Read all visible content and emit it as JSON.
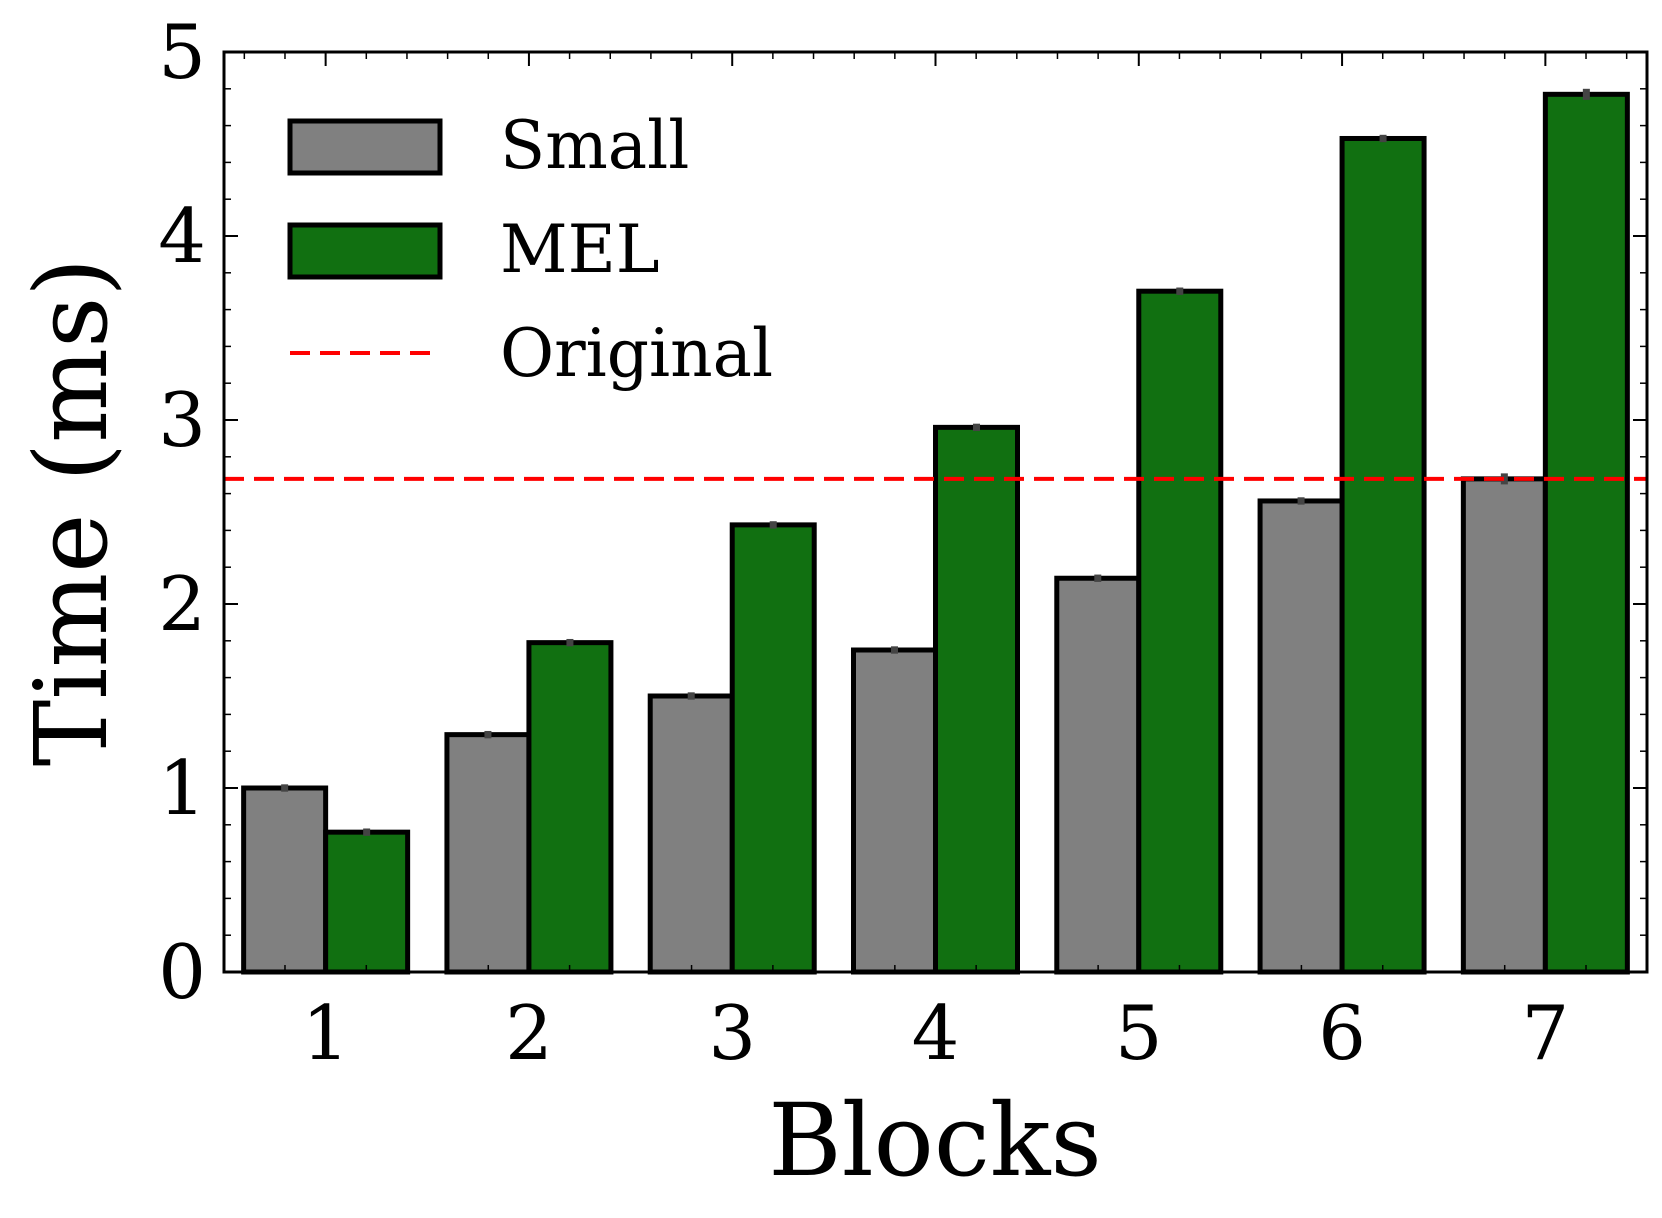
{
  "chart_data": {
    "type": "bar",
    "title": "",
    "xlabel": "Blocks",
    "ylabel": "Time (ms)",
    "categories": [
      "1",
      "2",
      "3",
      "4",
      "5",
      "6",
      "7"
    ],
    "ylim": [
      0,
      5
    ],
    "yticks": [
      "0",
      "1",
      "2",
      "3",
      "4",
      "5"
    ],
    "series": [
      {
        "name": "Small",
        "color": "#808080",
        "values": [
          1.0,
          1.29,
          1.5,
          1.75,
          2.14,
          2.56,
          2.68
        ],
        "errors": [
          0.02,
          0.02,
          0.02,
          0.02,
          0.02,
          0.02,
          0.03
        ]
      },
      {
        "name": "MEL",
        "color": "#117011",
        "values": [
          0.76,
          1.79,
          2.43,
          2.96,
          3.7,
          4.53,
          4.77
        ],
        "errors": [
          0.02,
          0.02,
          0.02,
          0.02,
          0.02,
          0.02,
          0.03
        ]
      }
    ],
    "reference_line": {
      "name": "Original",
      "value": 2.68,
      "color": "#ff0000",
      "style": "dashed"
    },
    "legend": {
      "position": "top-left",
      "entries": [
        "Small",
        "MEL",
        "Original"
      ]
    },
    "grid": false
  }
}
